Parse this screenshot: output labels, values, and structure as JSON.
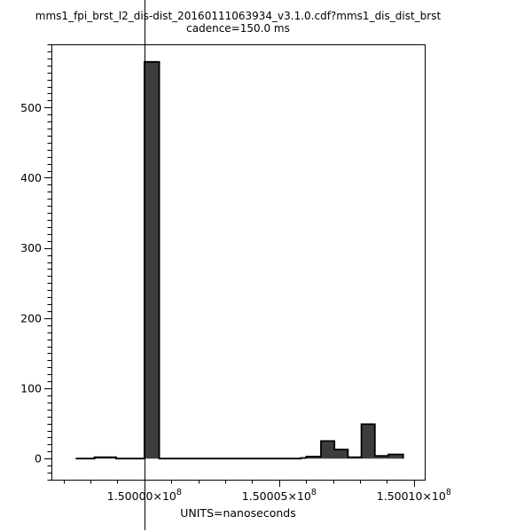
{
  "chart_data": {
    "type": "bar",
    "subtype": "histogram-step",
    "title": "mms1_fpi_brst_l2_dis-dist_20160111063934_v3.1.0.cdf?mms1_dis_dist_brst",
    "subtitle": "cadence=150.0 ms",
    "xlabel": "UNITS=nanoseconds",
    "ylabel": "",
    "grid": false,
    "legend": null,
    "colors": {
      "background": "#ffffff",
      "bar_fill": "#3d3d3d",
      "outline": "#000000",
      "axis": "#000000",
      "text": "#000000"
    },
    "x_axis": {
      "unit": "nanoseconds",
      "reference_ns": 150000000,
      "xlim_offset_ns": [
        -3450,
        10400
      ],
      "minor_tick_step_ns": 1000,
      "major_ticks": [
        {
          "offset_ns": 0,
          "mantissa": "1.50000×10",
          "exponent": "8"
        },
        {
          "offset_ns": 5000,
          "mantissa": "1.50005×10",
          "exponent": "8"
        },
        {
          "offset_ns": 10000,
          "mantissa": "1.50010×10",
          "exponent": "8"
        }
      ]
    },
    "y_axis": {
      "ylim": [
        -30,
        590
      ],
      "minor_tick_step": 10,
      "major_ticks": [
        {
          "value": 0,
          "label": "0"
        },
        {
          "value": 100,
          "label": "100"
        },
        {
          "value": 200,
          "label": "200"
        },
        {
          "value": 300,
          "label": "300"
        },
        {
          "value": 400,
          "label": "400"
        },
        {
          "value": 500,
          "label": "500"
        }
      ]
    },
    "marker_line_offset_ns": 0,
    "segments": [
      {
        "start_offset_ns": -2550,
        "end_offset_ns": -1850,
        "count": 0
      },
      {
        "start_offset_ns": -1850,
        "end_offset_ns": -1050,
        "count": 2
      },
      {
        "start_offset_ns": -1050,
        "end_offset_ns": 0,
        "count": 0
      },
      {
        "start_offset_ns": 0,
        "end_offset_ns": 550,
        "count": 565
      },
      {
        "start_offset_ns": 550,
        "end_offset_ns": 5800,
        "count": 0
      },
      {
        "start_offset_ns": 5800,
        "end_offset_ns": 6000,
        "count": 1
      },
      {
        "start_offset_ns": 6000,
        "end_offset_ns": 6550,
        "count": 3
      },
      {
        "start_offset_ns": 6550,
        "end_offset_ns": 7050,
        "count": 25
      },
      {
        "start_offset_ns": 7050,
        "end_offset_ns": 7550,
        "count": 13
      },
      {
        "start_offset_ns": 7550,
        "end_offset_ns": 8050,
        "count": 2
      },
      {
        "start_offset_ns": 8050,
        "end_offset_ns": 8550,
        "count": 49
      },
      {
        "start_offset_ns": 8550,
        "end_offset_ns": 9050,
        "count": 4
      },
      {
        "start_offset_ns": 9050,
        "end_offset_ns": 9600,
        "count": 6
      }
    ]
  }
}
